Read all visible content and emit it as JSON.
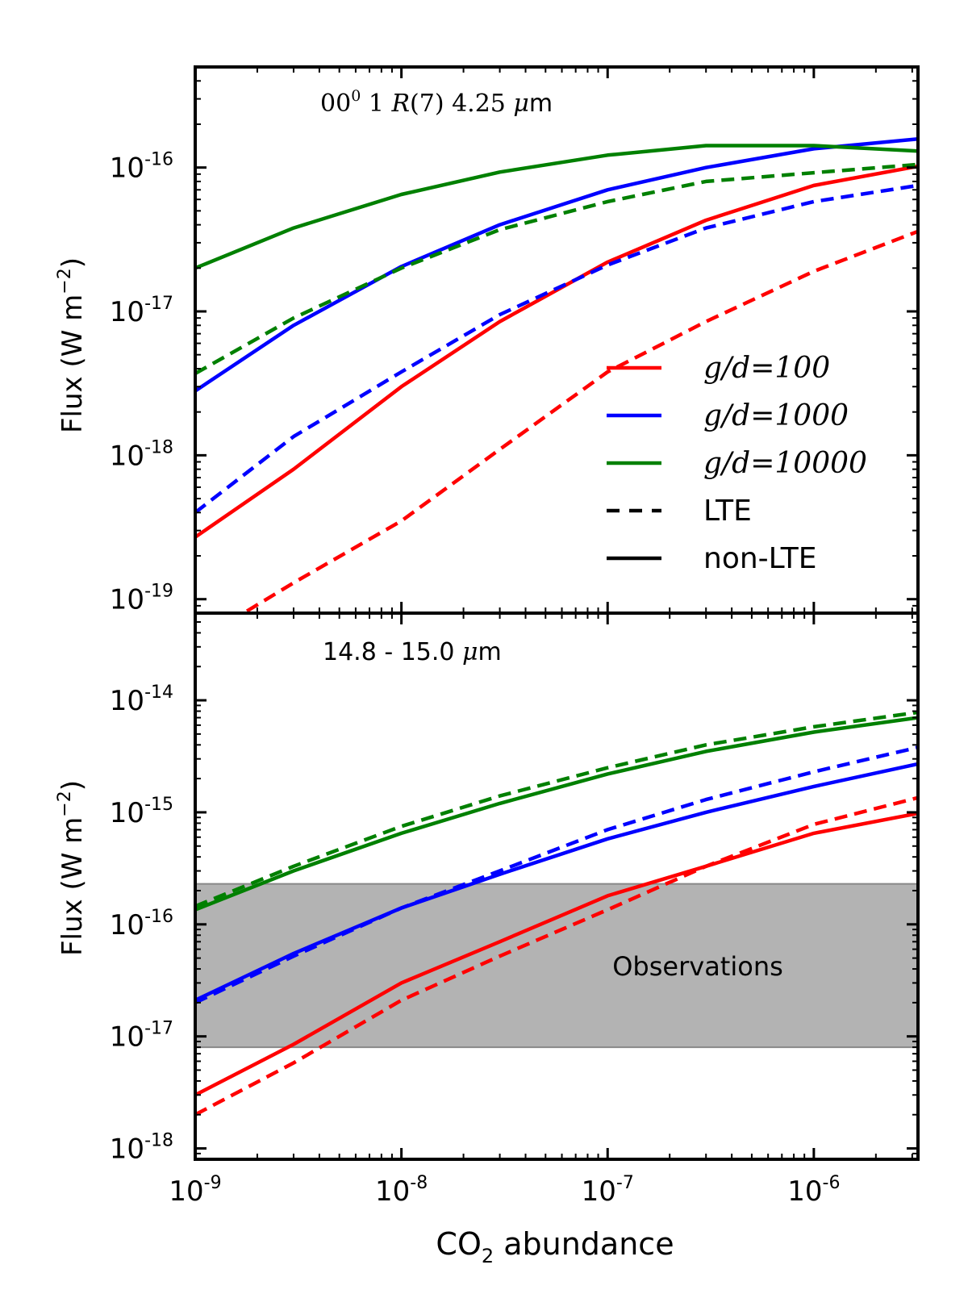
{
  "colors": {
    "red": "#ff0000",
    "blue": "#0000ff",
    "green": "#008000",
    "band": "#b3b3b3",
    "band_edge": "#888888",
    "axis": "#000000"
  },
  "x_axis": {
    "label_prefix": "CO",
    "label_subscript": "2",
    "label_suffix": " abundance",
    "scale": "log",
    "range": [
      1e-09,
      3.2e-06
    ],
    "tick_labels": [
      {
        "value": 1e-09,
        "base": "10",
        "exp": "-9"
      },
      {
        "value": 1e-08,
        "base": "10",
        "exp": "-8"
      },
      {
        "value": 1e-07,
        "base": "10",
        "exp": "-7"
      },
      {
        "value": 1e-06,
        "base": "10",
        "exp": "-6"
      }
    ]
  },
  "chart_data": [
    {
      "type": "line",
      "panel": "top",
      "annotation": {
        "part1": "00",
        "sup": "0",
        "part2": " 1 ",
        "italic": "R",
        "part3": "(7) 4.25 ",
        "mu": "μ",
        "unit": "m"
      },
      "ylabel": {
        "text": "Flux (W m",
        "sup": "−2",
        "close": ")"
      },
      "yscale": "log",
      "ylim": [
        8e-20,
        5e-16
      ],
      "y_tick_labels": [
        {
          "value": 1e-16,
          "base": "10",
          "exp": "-16"
        },
        {
          "value": 1e-17,
          "base": "10",
          "exp": "-17"
        },
        {
          "value": 1e-18,
          "base": "10",
          "exp": "-18"
        },
        {
          "value": 1e-19,
          "base": "10",
          "exp": "-19"
        }
      ],
      "x": [
        1e-09,
        3e-09,
        1e-08,
        3e-08,
        1e-07,
        3e-07,
        1e-06,
        3.2e-06
      ],
      "series": [
        {
          "name": "g/d=100",
          "color": "red",
          "style": "solid",
          "values": [
            2.7e-19,
            8e-19,
            3e-18,
            8.5e-18,
            2.2e-17,
            4.3e-17,
            7.5e-17,
            1.02e-16
          ]
        },
        {
          "name": "g/d=100",
          "color": "red",
          "style": "dashed",
          "values": [
            5e-20,
            1.3e-19,
            3.5e-19,
            1.1e-18,
            3.8e-18,
            8.5e-18,
            1.9e-17,
            3.6e-17
          ]
        },
        {
          "name": "g/d=1000",
          "color": "blue",
          "style": "solid",
          "values": [
            2.8e-18,
            8e-18,
            2.05e-17,
            4e-17,
            7e-17,
            1e-16,
            1.35e-16,
            1.58e-16
          ]
        },
        {
          "name": "g/d=1000",
          "color": "blue",
          "style": "dashed",
          "values": [
            4e-19,
            1.35e-18,
            3.8e-18,
            9.5e-18,
            2.1e-17,
            3.8e-17,
            5.8e-17,
            7.5e-17
          ]
        },
        {
          "name": "g/d=10000",
          "color": "green",
          "style": "solid",
          "values": [
            2e-17,
            3.8e-17,
            6.5e-17,
            9.3e-17,
            1.22e-16,
            1.42e-16,
            1.42e-16,
            1.3e-16
          ]
        },
        {
          "name": "g/d=10000",
          "color": "green",
          "style": "dashed",
          "values": [
            3.7e-18,
            9e-18,
            2e-17,
            3.7e-17,
            5.8e-17,
            8e-17,
            9.2e-17,
            1.05e-16
          ]
        }
      ],
      "legend": {
        "placement": "lower-right",
        "entries": [
          {
            "color": "red",
            "style": "solid",
            "math": true,
            "label": "g/d=100"
          },
          {
            "color": "blue",
            "style": "solid",
            "math": true,
            "label": "g/d=1000"
          },
          {
            "color": "green",
            "style": "solid",
            "math": true,
            "label": "g/d=10000"
          },
          {
            "color": "axis",
            "style": "dashed",
            "math": false,
            "label": "LTE"
          },
          {
            "color": "axis",
            "style": "solid",
            "math": false,
            "label": "non-LTE"
          }
        ]
      }
    },
    {
      "type": "line",
      "panel": "bottom",
      "annotation": {
        "text": "14.8 - 15.0 ",
        "mu": "μ",
        "unit": "m"
      },
      "ylabel": {
        "text": "Flux (W m",
        "sup": "−2",
        "close": ")"
      },
      "yscale": "log",
      "ylim": [
        8e-19,
        6e-14
      ],
      "y_tick_labels": [
        {
          "value": 1e-14,
          "base": "10",
          "exp": "-14"
        },
        {
          "value": 1e-15,
          "base": "10",
          "exp": "-15"
        },
        {
          "value": 1e-16,
          "base": "10",
          "exp": "-16"
        },
        {
          "value": 1e-17,
          "base": "10",
          "exp": "-17"
        },
        {
          "value": 1e-18,
          "base": "10",
          "exp": "-18"
        }
      ],
      "observations": {
        "label": "Observations",
        "range": [
          8e-18,
          2.3e-16
        ]
      },
      "x": [
        1e-09,
        3e-09,
        1e-08,
        3e-08,
        1e-07,
        3e-07,
        1e-06,
        3.2e-06
      ],
      "series": [
        {
          "name": "g/d=100",
          "color": "red",
          "style": "solid",
          "values": [
            3e-18,
            8.5e-18,
            3e-17,
            7e-17,
            1.8e-16,
            3.3e-16,
            6.5e-16,
            9.8e-16
          ]
        },
        {
          "name": "g/d=100",
          "color": "red",
          "style": "dashed",
          "values": [
            2e-18,
            5.8e-18,
            2.1e-17,
            5.2e-17,
            1.35e-16,
            3.3e-16,
            7.8e-16,
            1.35e-15
          ]
        },
        {
          "name": "g/d=1000",
          "color": "blue",
          "style": "solid",
          "values": [
            2.1e-17,
            5.5e-17,
            1.4e-16,
            2.8e-16,
            5.8e-16,
            1e-15,
            1.7e-15,
            2.7e-15
          ]
        },
        {
          "name": "g/d=1000",
          "color": "blue",
          "style": "dashed",
          "values": [
            2e-17,
            5.2e-17,
            1.4e-16,
            3e-16,
            7e-16,
            1.3e-15,
            2.3e-15,
            3.8e-15
          ]
        },
        {
          "name": "g/d=10000",
          "color": "green",
          "style": "solid",
          "values": [
            1.35e-16,
            3e-16,
            6.5e-16,
            1.2e-15,
            2.2e-15,
            3.5e-15,
            5.2e-15,
            7e-15
          ]
        },
        {
          "name": "g/d=10000",
          "color": "green",
          "style": "dashed",
          "values": [
            1.45e-16,
            3.3e-16,
            7.5e-16,
            1.4e-15,
            2.5e-15,
            4e-15,
            5.8e-15,
            7.8e-15
          ]
        }
      ]
    }
  ]
}
